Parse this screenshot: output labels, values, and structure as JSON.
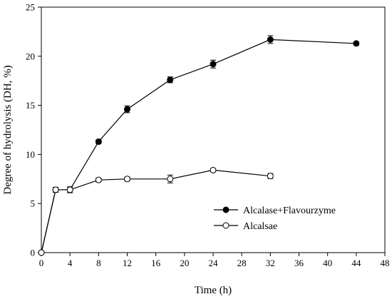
{
  "chart_data": {
    "type": "line",
    "xlabel": "Time (h)",
    "ylabel": "Degree of hydrolysis (DH, %)",
    "xlim": [
      0,
      48
    ],
    "ylim": [
      0,
      25
    ],
    "xticks": [
      0,
      4,
      8,
      12,
      16,
      20,
      24,
      28,
      32,
      36,
      40,
      44,
      48
    ],
    "yticks": [
      0,
      5,
      10,
      15,
      20,
      25
    ],
    "grid": false,
    "legend_position": "bottom-right",
    "series": [
      {
        "name": "Alcalase+Flavourzyme",
        "marker": "filled-circle",
        "color": "#000000",
        "points": [
          {
            "x": 0,
            "y": 0,
            "err": 0
          },
          {
            "x": 2,
            "y": 6.4,
            "err": 0.25
          },
          {
            "x": 4,
            "y": 6.4,
            "err": 0.3
          },
          {
            "x": 8,
            "y": 11.3,
            "err": 0.2
          },
          {
            "x": 12,
            "y": 14.6,
            "err": 0.35
          },
          {
            "x": 18,
            "y": 17.6,
            "err": 0.3
          },
          {
            "x": 24,
            "y": 19.2,
            "err": 0.4
          },
          {
            "x": 32,
            "y": 21.7,
            "err": 0.4
          },
          {
            "x": 44,
            "y": 21.3,
            "err": 0.15
          }
        ]
      },
      {
        "name": "Alcalsae",
        "marker": "open-circle",
        "color": "#000000",
        "points": [
          {
            "x": 0,
            "y": 0,
            "err": 0
          },
          {
            "x": 2,
            "y": 6.4,
            "err": 0.25
          },
          {
            "x": 4,
            "y": 6.4,
            "err": 0.3
          },
          {
            "x": 8,
            "y": 7.4,
            "err": 0.2
          },
          {
            "x": 12,
            "y": 7.5,
            "err": 0.2
          },
          {
            "x": 18,
            "y": 7.5,
            "err": 0.4
          },
          {
            "x": 24,
            "y": 8.4,
            "err": 0.15
          },
          {
            "x": 32,
            "y": 7.8,
            "err": 0.25
          }
        ]
      }
    ]
  }
}
